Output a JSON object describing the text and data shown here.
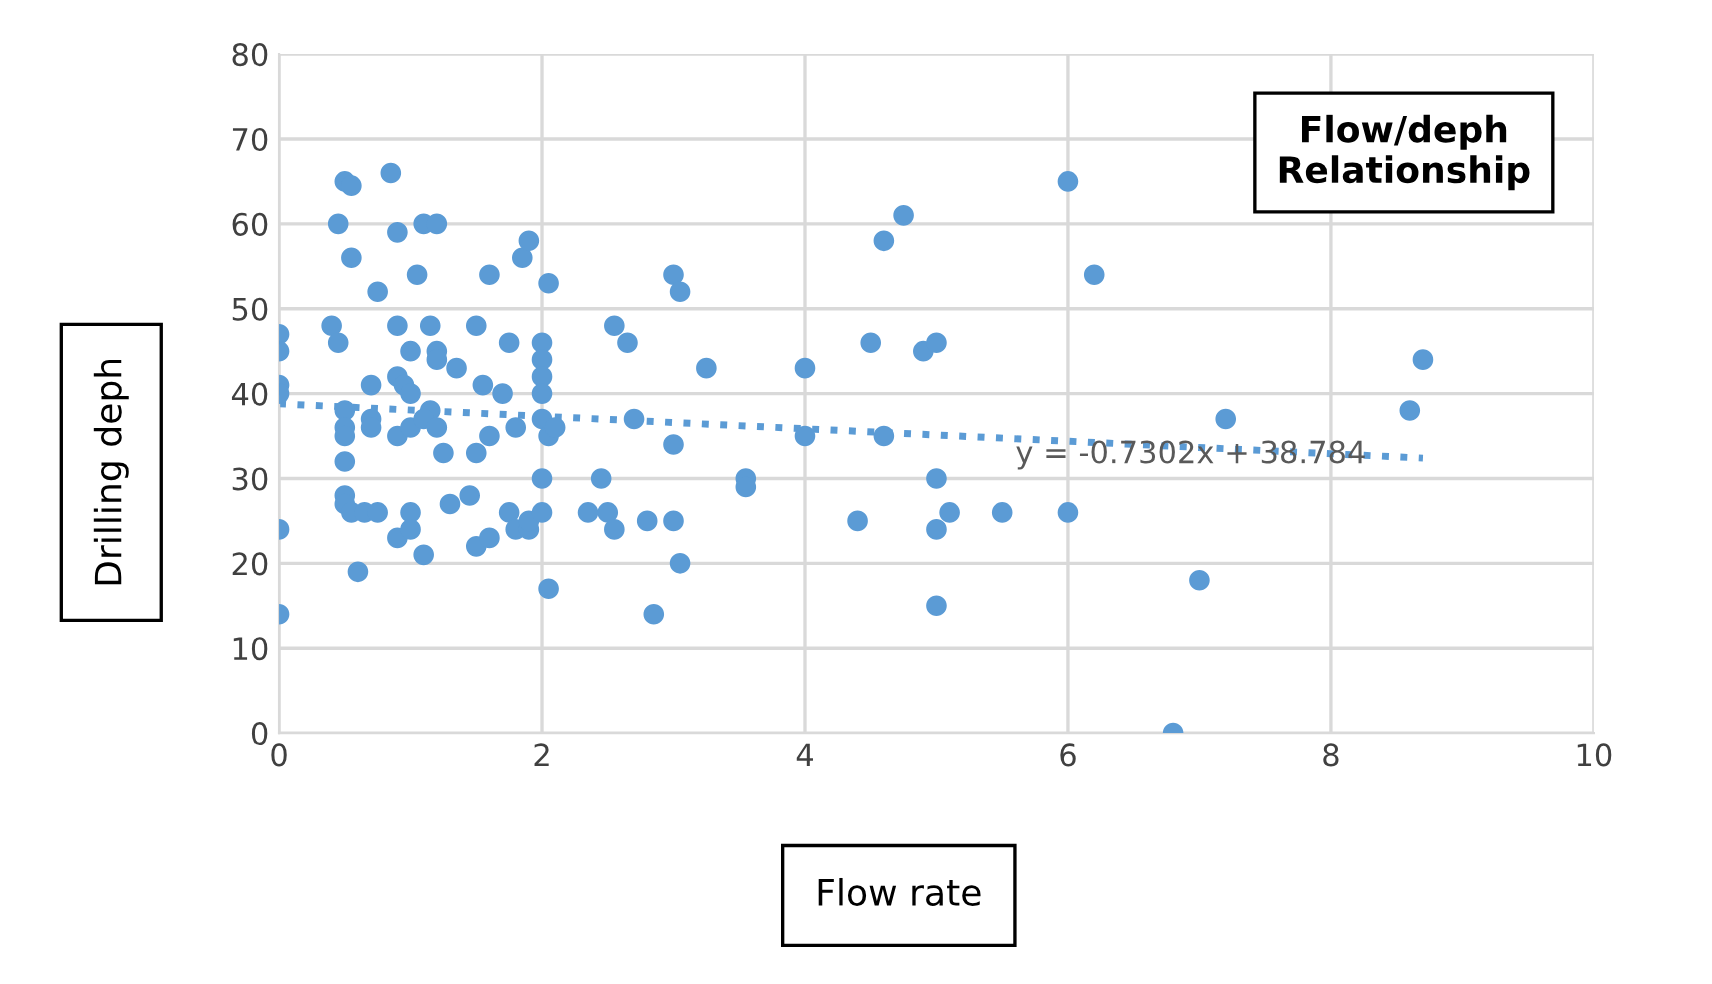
{
  "chart_data": {
    "type": "scatter",
    "title": "Flow/deph\nRelationship",
    "xlabel": "Flow rate",
    "ylabel": "Drilling deph",
    "xlim": [
      0,
      10
    ],
    "xticks": [
      0,
      2,
      4,
      6,
      8,
      10
    ],
    "ylim": [
      0,
      80
    ],
    "yticks": [
      0,
      10,
      20,
      30,
      40,
      50,
      60,
      70,
      80
    ],
    "grid": true,
    "marker": "circle",
    "annotations": [
      "y = -0.7302x + 38.784"
    ],
    "series": [
      {
        "color": "#5b9bd5",
        "x": [
          0,
          0,
          0,
          0,
          0,
          0,
          0.45,
          0.4,
          0.45,
          0.5,
          0.55,
          0.55,
          0.5,
          0.5,
          0.5,
          0.5,
          0.5,
          0.5,
          0.55,
          0.6,
          0.7,
          0.7,
          0.7,
          0.65,
          0.75,
          0.75,
          0.85,
          0.9,
          0.9,
          0.9,
          0.95,
          0.9,
          0.9,
          1.0,
          1.0,
          1.0,
          1.0,
          1.0,
          1.05,
          1.1,
          1.15,
          1.15,
          1.1,
          1.1,
          1.2,
          1.2,
          1.2,
          1.2,
          1.25,
          1.3,
          1.35,
          1.45,
          1.5,
          1.5,
          1.5,
          1.55,
          1.6,
          1.6,
          1.6,
          1.7,
          1.75,
          1.75,
          1.8,
          1.8,
          1.85,
          1.9,
          1.9,
          1.9,
          2.0,
          2.0,
          2.0,
          2.0,
          2.0,
          2.0,
          2.0,
          2.05,
          2.05,
          2.05,
          2.1,
          2.35,
          2.45,
          2.5,
          2.55,
          2.55,
          2.65,
          2.7,
          2.8,
          2.85,
          3.0,
          3.0,
          3.0,
          3.05,
          3.05,
          3.25,
          3.55,
          3.55,
          4.0,
          4.0,
          4.4,
          4.5,
          4.6,
          4.6,
          4.75,
          4.9,
          5.0,
          5.0,
          5.0,
          5.0,
          5.1,
          5.5,
          6.0,
          6.0,
          6.2,
          6.8,
          7.0,
          7.2,
          8.6,
          8.7
        ],
        "values": [
          47,
          45,
          41,
          40,
          24,
          14,
          60,
          48,
          46,
          65,
          64.5,
          56,
          38,
          36,
          35,
          32,
          28,
          27,
          26,
          19,
          41,
          37,
          36,
          26,
          26,
          52,
          66,
          59,
          48,
          42,
          41,
          35,
          23,
          45,
          40,
          36,
          26,
          24,
          54,
          60,
          48,
          38,
          37,
          21,
          60,
          45,
          44,
          36,
          33,
          27,
          43,
          28,
          48,
          33,
          22,
          41,
          54,
          35,
          23,
          40,
          26,
          46,
          24,
          36,
          56,
          58,
          24,
          25,
          46,
          44,
          42,
          40,
          37,
          30,
          26,
          53,
          35,
          17,
          36,
          26,
          30,
          26,
          48,
          24,
          46,
          37,
          25,
          14,
          54,
          34,
          25,
          52,
          20,
          43,
          30,
          29,
          43,
          35,
          25,
          46,
          58,
          35,
          61,
          45,
          46,
          30,
          24,
          15,
          26,
          26,
          65,
          26,
          54,
          0,
          18,
          37,
          38,
          44
        ]
      },
      {
        "type": "line",
        "line_style": "dotted",
        "marker": "none",
        "color": "#5b9bd5",
        "x": [
          0,
          8.7
        ],
        "values": [
          38.8,
          32.4
        ]
      }
    ]
  }
}
